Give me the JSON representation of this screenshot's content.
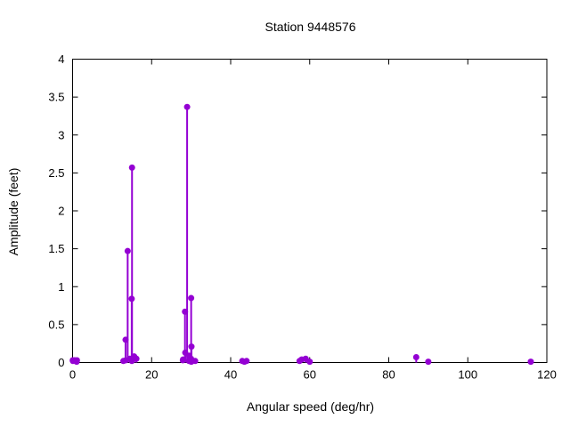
{
  "title": "Station 9448576",
  "chart_data": {
    "type": "scatter",
    "style": "impulses-with-points",
    "title": "Station 9448576",
    "xlabel": "Angular speed (deg/hr)",
    "ylabel": "Amplitude (feet)",
    "xlim": [
      0,
      120
    ],
    "ylim": [
      0,
      4
    ],
    "x_ticks": [
      0,
      20,
      40,
      60,
      80,
      100,
      120
    ],
    "y_ticks": [
      0,
      0.5,
      1,
      1.5,
      2,
      2.5,
      3,
      3.5,
      4
    ],
    "grid": false,
    "legend_position": "none",
    "accent_color": "#9400d3",
    "frame_color": "#000000",
    "background_color": "#ffffff",
    "series": [
      {
        "name": "amplitude-vs-angular-speed",
        "x": [
          0.04,
          0.08,
          0.54,
          1.02,
          1.1,
          12.85,
          13.4,
          13.47,
          13.94,
          14.5,
          14.96,
          15.0,
          15.04,
          15.59,
          16.14,
          27.9,
          27.97,
          28.44,
          28.51,
          28.98,
          29.46,
          29.53,
          29.96,
          30.0,
          30.04,
          30.08,
          31.02,
          42.93,
          43.48,
          44.03,
          57.42,
          57.97,
          58.98,
          60.0,
          86.95,
          90.0,
          115.94
        ],
        "y": [
          0.03,
          0.02,
          0.03,
          0.01,
          0.03,
          0.02,
          0.3,
          0.03,
          1.47,
          0.05,
          0.84,
          0.02,
          2.57,
          0.08,
          0.05,
          0.03,
          0.04,
          0.67,
          0.13,
          3.37,
          0.02,
          0.09,
          0.05,
          0.85,
          0.01,
          0.21,
          0.02,
          0.02,
          0.01,
          0.02,
          0.02,
          0.04,
          0.05,
          0.01,
          0.07,
          0.01,
          0.01
        ]
      }
    ]
  }
}
